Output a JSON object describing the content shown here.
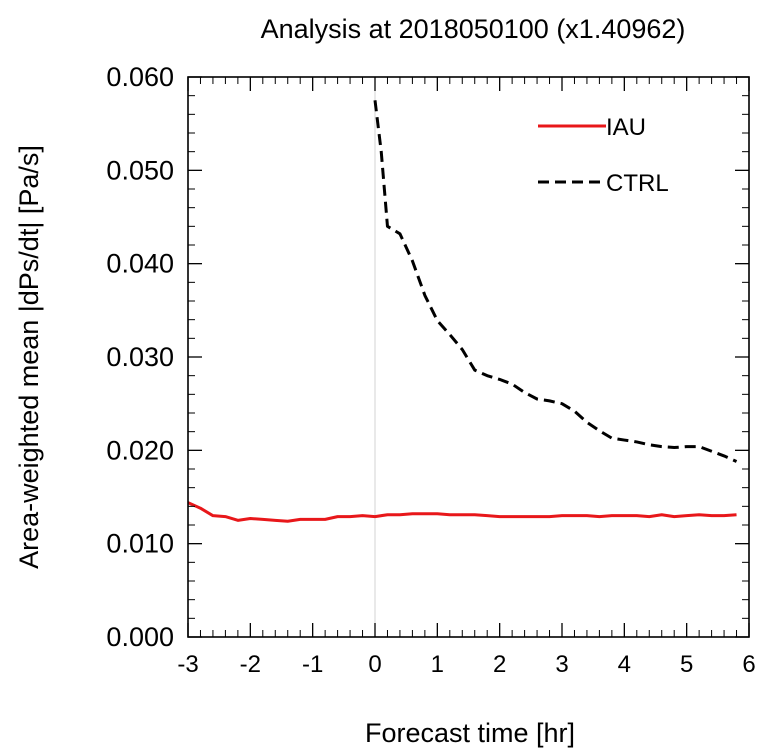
{
  "chart_data": {
    "type": "line",
    "title": "Analysis at 2018050100 (x1.40962)",
    "xlabel": "Forecast time [hr]",
    "ylabel": "Area-weighted mean |dPs/dt| [Pa/s]",
    "xlim": [
      -3,
      6
    ],
    "ylim": [
      0,
      0.06
    ],
    "x_ticks": [
      -3,
      -2,
      -1,
      0,
      1,
      2,
      3,
      4,
      5,
      6
    ],
    "x_tick_labels": [
      "-3",
      "-2",
      "-1",
      "0",
      "1",
      "2",
      "3",
      "4",
      "5",
      "6"
    ],
    "y_ticks": [
      0,
      0.01,
      0.02,
      0.03,
      0.04,
      0.05,
      0.06
    ],
    "y_tick_labels": [
      "0.000",
      "0.010",
      "0.020",
      "0.030",
      "0.040",
      "0.050",
      "0.060"
    ],
    "grid": false,
    "legend": {
      "placement": "top-right"
    },
    "reference_line_x": 0,
    "series": [
      {
        "name": "IAU",
        "color": "#e8171a",
        "dash": "solid",
        "x": [
          -3.0,
          -2.8,
          -2.6,
          -2.4,
          -2.2,
          -2.0,
          -1.8,
          -1.6,
          -1.4,
          -1.2,
          -1.0,
          -0.8,
          -0.6,
          -0.4,
          -0.2,
          0.0,
          0.2,
          0.4,
          0.6,
          0.8,
          1.0,
          1.2,
          1.4,
          1.6,
          1.8,
          2.0,
          2.2,
          2.4,
          2.6,
          2.8,
          3.0,
          3.2,
          3.4,
          3.6,
          3.8,
          4.0,
          4.2,
          4.4,
          4.6,
          4.8,
          5.0,
          5.2,
          5.4,
          5.6,
          5.8
        ],
        "y": [
          0.0144,
          0.0138,
          0.013,
          0.0129,
          0.0125,
          0.0127,
          0.0126,
          0.0125,
          0.0124,
          0.0126,
          0.0126,
          0.0126,
          0.0129,
          0.0129,
          0.013,
          0.0129,
          0.0131,
          0.0131,
          0.0132,
          0.0132,
          0.0132,
          0.0131,
          0.0131,
          0.0131,
          0.013,
          0.0129,
          0.0129,
          0.0129,
          0.0129,
          0.0129,
          0.013,
          0.013,
          0.013,
          0.0129,
          0.013,
          0.013,
          0.013,
          0.0129,
          0.0131,
          0.0129,
          0.013,
          0.0131,
          0.013,
          0.013,
          0.0131
        ]
      },
      {
        "name": "CTRL",
        "color": "#000000",
        "dash": "dashed",
        "x": [
          0.0,
          0.1,
          0.2,
          0.4,
          0.6,
          0.8,
          1.0,
          1.2,
          1.4,
          1.6,
          1.8,
          2.0,
          2.2,
          2.4,
          2.6,
          2.8,
          3.0,
          3.2,
          3.4,
          3.6,
          3.8,
          4.0,
          4.2,
          4.4,
          4.6,
          4.8,
          5.0,
          5.2,
          5.4,
          5.6,
          5.8
        ],
        "y": [
          0.0575,
          0.052,
          0.044,
          0.0432,
          0.0403,
          0.0366,
          0.0339,
          0.0324,
          0.0308,
          0.0286,
          0.028,
          0.0276,
          0.0271,
          0.0262,
          0.0255,
          0.0253,
          0.025,
          0.0242,
          0.023,
          0.0221,
          0.0213,
          0.0211,
          0.0209,
          0.0206,
          0.0204,
          0.0203,
          0.0204,
          0.0204,
          0.0199,
          0.0194,
          0.0188
        ]
      }
    ]
  }
}
